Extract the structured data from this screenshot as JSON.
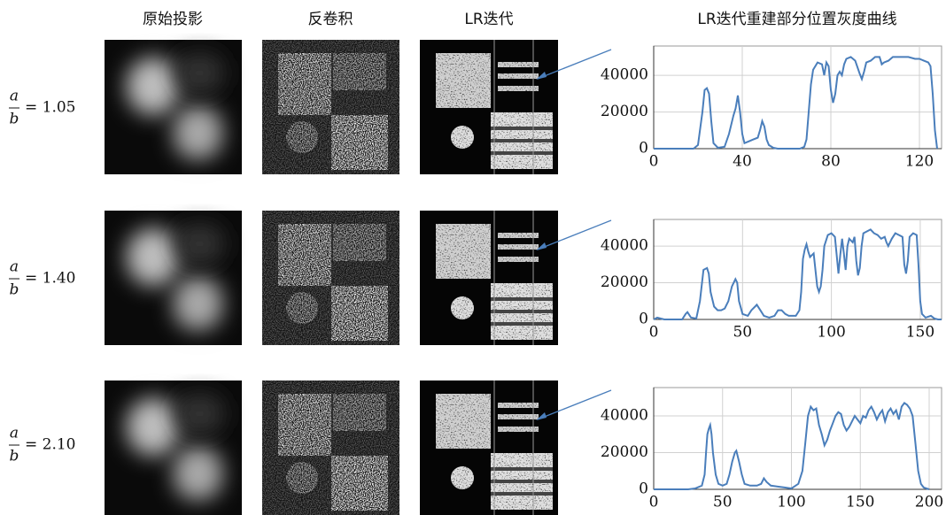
{
  "headers": [
    "原始投影",
    "反卷积",
    "LR迭代",
    "LR迭代重建部分位置灰度曲线"
  ],
  "row_labels": [
    {
      "numerator": "a",
      "denominator": "b",
      "value": "= 1.05"
    },
    {
      "numerator": "a",
      "denominator": "b",
      "value": "= 1.40"
    },
    {
      "numerator": "a",
      "denominator": "b",
      "value": "= 2.10"
    }
  ],
  "chart_data": [
    {
      "type": "line",
      "color": "#4a7ebb",
      "grid": true,
      "xlim": [
        0,
        130
      ],
      "ylim": [
        0,
        56000
      ],
      "xticks": [
        0,
        40,
        80,
        120
      ],
      "yticks": [
        0,
        20000,
        40000
      ],
      "x": [
        0,
        18,
        20,
        22,
        23,
        24,
        25,
        26,
        27,
        29,
        32,
        34,
        36,
        37,
        38,
        39,
        40,
        41,
        43,
        45,
        47,
        48,
        49,
        50,
        51,
        52,
        54,
        56,
        66,
        68,
        69,
        70,
        71,
        72,
        74,
        76,
        77,
        78,
        79,
        80,
        81,
        82,
        83,
        84,
        85,
        86,
        87,
        89,
        91,
        93,
        94,
        95,
        96,
        98,
        100,
        102,
        103,
        104,
        106,
        108,
        115,
        118,
        120,
        122,
        124,
        125,
        126,
        127,
        128
      ],
      "values": [
        0,
        0,
        2000,
        20000,
        32000,
        33000,
        30000,
        15000,
        3000,
        500,
        1000,
        8000,
        18000,
        22000,
        29000,
        20000,
        8000,
        3000,
        4000,
        5000,
        6000,
        10000,
        15000,
        12000,
        5000,
        2000,
        500,
        0,
        0,
        1000,
        5000,
        20000,
        35000,
        43000,
        47000,
        46000,
        40000,
        47000,
        45000,
        32000,
        25000,
        30000,
        40000,
        42000,
        40000,
        46000,
        49000,
        50000,
        48000,
        41000,
        38000,
        42000,
        47000,
        48000,
        50000,
        50000,
        46000,
        47000,
        48000,
        50000,
        50000,
        49000,
        49000,
        48000,
        47000,
        45000,
        30000,
        10000,
        0
      ]
    },
    {
      "type": "line",
      "color": "#4a7ebb",
      "grid": true,
      "xlim": [
        0,
        162
      ],
      "ylim": [
        0,
        54500
      ],
      "xticks": [
        0,
        50,
        100,
        150
      ],
      "yticks": [
        0,
        20000,
        40000
      ],
      "x": [
        0,
        2,
        4,
        6,
        16,
        18,
        19,
        21,
        24,
        26,
        28,
        30,
        31,
        32,
        34,
        36,
        38,
        40,
        42,
        44,
        46,
        47,
        48,
        50,
        53,
        55,
        57,
        58,
        60,
        62,
        65,
        68,
        70,
        72,
        74,
        76,
        80,
        82,
        83,
        84,
        85,
        86,
        87,
        88,
        89,
        90,
        92,
        93,
        94,
        95,
        96,
        98,
        100,
        102,
        103,
        104,
        105,
        106,
        107,
        108,
        109,
        110,
        112,
        113,
        114,
        115,
        116,
        117,
        118,
        120,
        122,
        124,
        126,
        128,
        130,
        131,
        132,
        134,
        136,
        138,
        140,
        141,
        142,
        143,
        144,
        146,
        148,
        149,
        150,
        151,
        153,
        156,
        158,
        160,
        162
      ],
      "values": [
        0,
        1000,
        500,
        0,
        0,
        3000,
        4000,
        1000,
        500,
        10000,
        27000,
        28000,
        25000,
        15000,
        7000,
        5000,
        5000,
        6000,
        10000,
        18000,
        22000,
        20000,
        10000,
        3000,
        2000,
        5000,
        7000,
        8000,
        5000,
        2000,
        1000,
        2000,
        5000,
        5000,
        3000,
        2000,
        2000,
        5000,
        15000,
        33000,
        38000,
        41000,
        37000,
        34000,
        35000,
        36000,
        18000,
        15000,
        18000,
        27000,
        40000,
        46000,
        47000,
        45000,
        35000,
        25000,
        35000,
        44000,
        36000,
        27000,
        40000,
        44000,
        42000,
        45000,
        32000,
        24000,
        28000,
        40000,
        47000,
        48000,
        49000,
        47000,
        46000,
        44000,
        45000,
        42000,
        40000,
        44000,
        47000,
        46000,
        45000,
        30000,
        25000,
        32000,
        45000,
        47000,
        46000,
        30000,
        10000,
        3000,
        1000,
        2000,
        500,
        0,
        0
      ]
    },
    {
      "type": "line",
      "color": "#4a7ebb",
      "grid": true,
      "xlim": [
        0,
        209
      ],
      "ylim": [
        0,
        55400
      ],
      "xticks": [
        0,
        50,
        100,
        150,
        200
      ],
      "yticks": [
        0,
        20000,
        40000
      ],
      "x": [
        0,
        25,
        30,
        35,
        37,
        38,
        39,
        40,
        41,
        42,
        43,
        45,
        47,
        50,
        53,
        55,
        57,
        59,
        60,
        62,
        64,
        66,
        70,
        75,
        78,
        80,
        82,
        85,
        90,
        95,
        100,
        105,
        108,
        110,
        112,
        114,
        116,
        118,
        120,
        122,
        124,
        126,
        128,
        130,
        132,
        134,
        136,
        138,
        140,
        142,
        144,
        146,
        148,
        150,
        152,
        154,
        156,
        158,
        160,
        162,
        164,
        166,
        168,
        170,
        172,
        174,
        176,
        178,
        180,
        182,
        184,
        186,
        188,
        190,
        192,
        194,
        196,
        198,
        200
      ],
      "values": [
        0,
        0,
        500,
        2000,
        8000,
        20000,
        30000,
        33000,
        35000,
        30000,
        20000,
        8000,
        3000,
        2000,
        3000,
        8000,
        15000,
        20000,
        21000,
        15000,
        8000,
        3000,
        2000,
        2000,
        3000,
        6000,
        4000,
        2000,
        1500,
        1000,
        500,
        3000,
        10000,
        25000,
        40000,
        45000,
        43000,
        44000,
        35000,
        30000,
        24000,
        27000,
        32000,
        36000,
        40000,
        42000,
        41000,
        35000,
        32000,
        34000,
        37000,
        40000,
        38000,
        36000,
        40000,
        39000,
        43000,
        45000,
        42000,
        38000,
        41000,
        43000,
        37000,
        42000,
        44000,
        41000,
        43000,
        38000,
        45000,
        47000,
        46000,
        44000,
        40000,
        25000,
        10000,
        3000,
        1000,
        500,
        0
      ]
    }
  ]
}
